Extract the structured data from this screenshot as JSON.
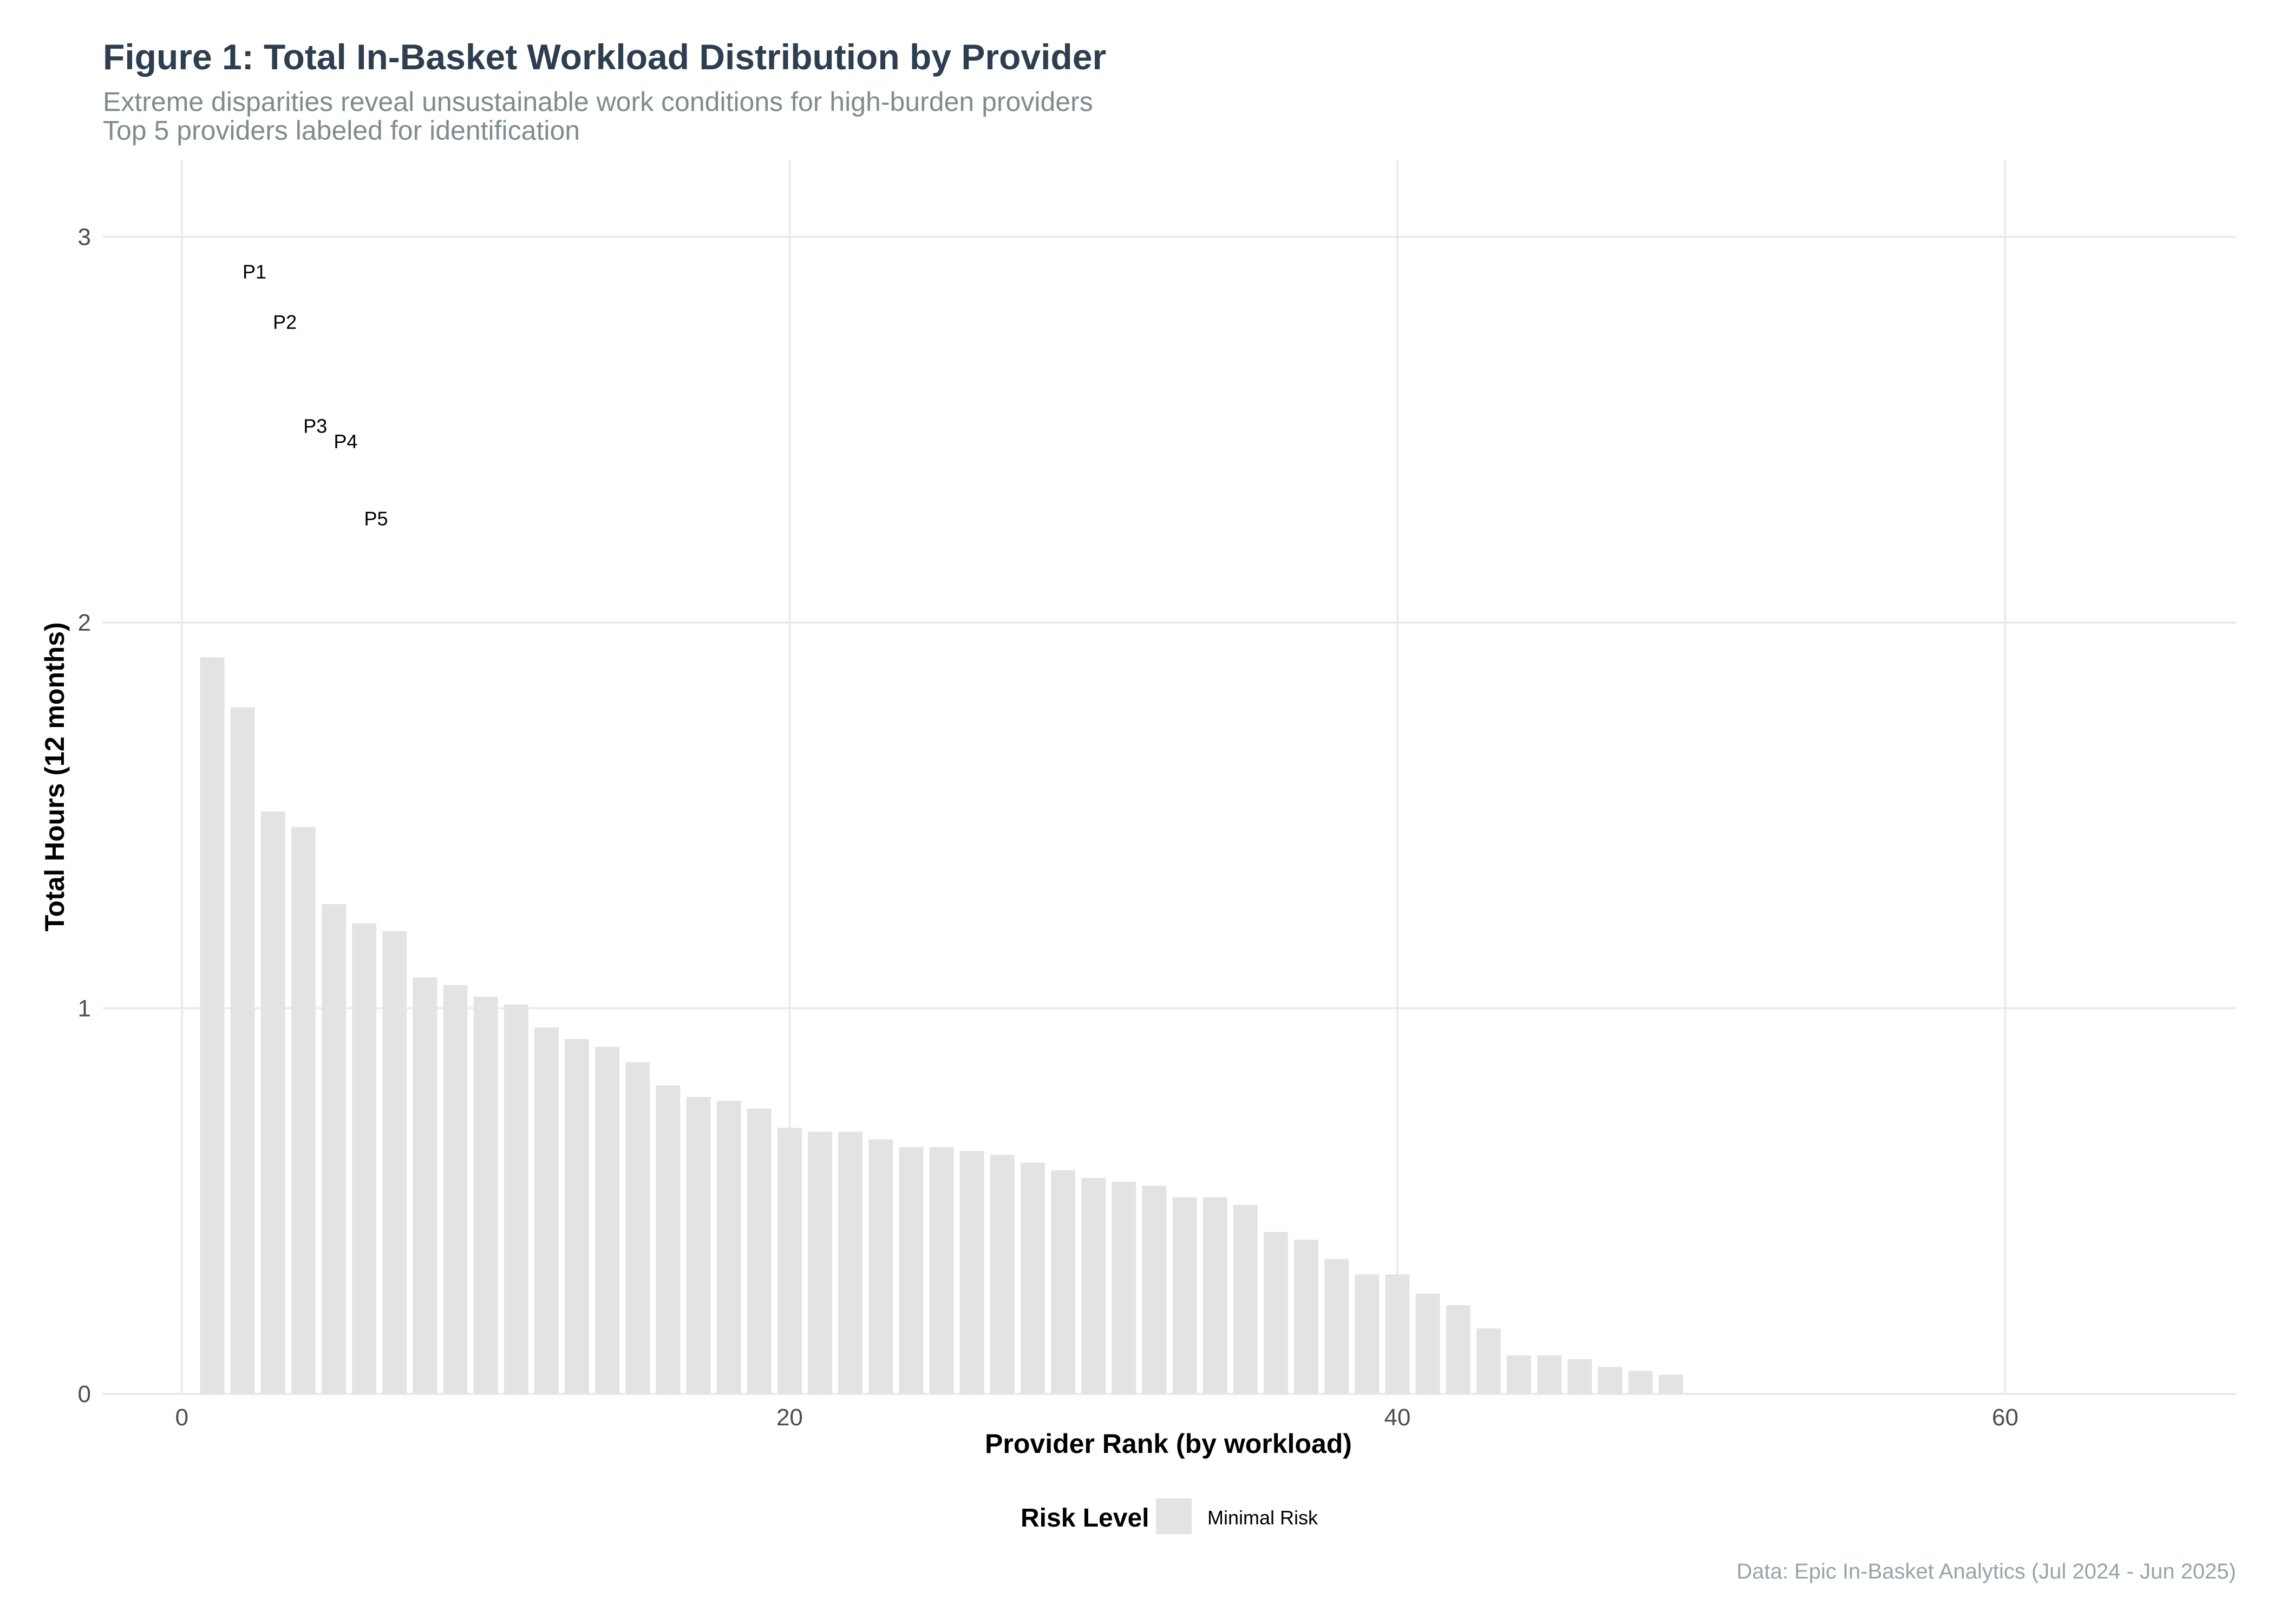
{
  "chart_data": {
    "type": "bar",
    "title": "Figure 1: Total In-Basket Workload Distribution by Provider",
    "subtitle_lines": [
      "Extreme disparities reveal unsustainable work conditions for high-burden providers",
      "Top 5 providers labeled for identification"
    ],
    "xlabel": "Provider Rank (by workload)",
    "ylabel": "Total Hours (12 months)",
    "xlim": [
      -2.6,
      67.6
    ],
    "ylim": [
      0,
      3.2
    ],
    "x_ticks": [
      0,
      20,
      40,
      60
    ],
    "y_ticks": [
      0,
      1,
      2,
      3
    ],
    "grid": true,
    "bar_color": "#e3e3e3",
    "x": [
      1,
      2,
      3,
      4,
      5,
      6,
      7,
      8,
      9,
      10,
      11,
      12,
      13,
      14,
      15,
      16,
      17,
      18,
      19,
      20,
      21,
      22,
      23,
      24,
      25,
      26,
      27,
      28,
      29,
      30,
      31,
      32,
      33,
      34,
      35,
      36,
      37,
      38,
      39,
      40,
      41,
      42,
      43,
      44,
      45,
      46,
      47,
      48,
      49
    ],
    "values": [
      1.91,
      1.78,
      1.51,
      1.47,
      1.27,
      1.22,
      1.2,
      1.08,
      1.06,
      1.03,
      1.01,
      0.95,
      0.92,
      0.9,
      0.86,
      0.8,
      0.77,
      0.76,
      0.74,
      0.69,
      0.68,
      0.68,
      0.66,
      0.64,
      0.64,
      0.63,
      0.62,
      0.6,
      0.58,
      0.56,
      0.55,
      0.54,
      0.51,
      0.51,
      0.49,
      0.42,
      0.4,
      0.35,
      0.31,
      0.31,
      0.26,
      0.23,
      0.17,
      0.1,
      0.1,
      0.09,
      0.07,
      0.06,
      0.05
    ],
    "annotations": [
      {
        "label": "P1",
        "x": 1,
        "y": 2.91
      },
      {
        "label": "P2",
        "x": 2,
        "y": 2.78
      },
      {
        "label": "P3",
        "x": 3,
        "y": 2.51
      },
      {
        "label": "P4",
        "x": 4,
        "y": 2.47
      },
      {
        "label": "P5",
        "x": 5,
        "y": 2.27
      }
    ],
    "legend": {
      "title": "Risk Level",
      "position": "bottom",
      "entries": [
        {
          "label": "Minimal Risk",
          "color": "#e3e3e3"
        }
      ]
    },
    "caption": "Data: Epic In-Basket Analytics (Jul 2024 - Jun 2025)"
  }
}
